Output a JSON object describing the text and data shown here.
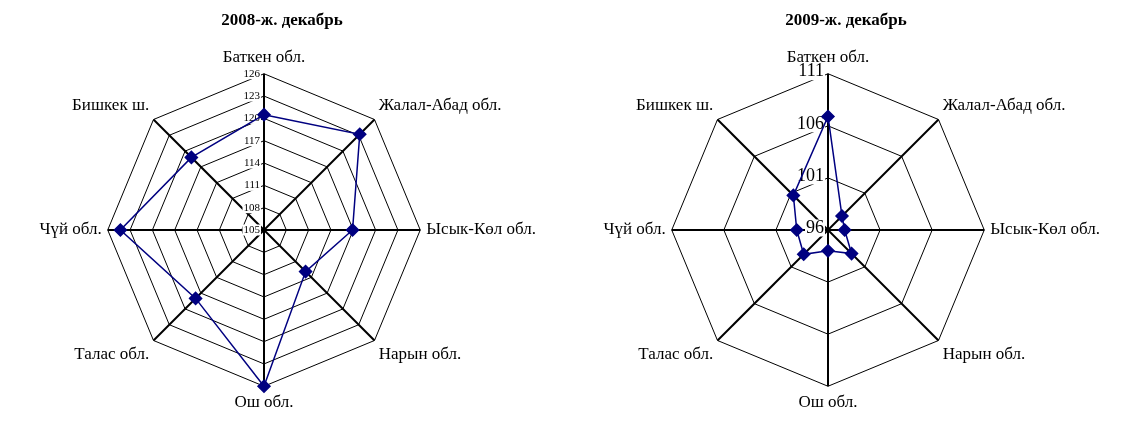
{
  "chart_data": [
    {
      "type": "radar",
      "title": "2008-ж. декабрь",
      "categories": [
        "Баткен обл.",
        "Жалал-Абад обл.",
        "Ысык-Көл обл.",
        "Нарын обл.",
        "Ош обл.",
        "Талас обл.",
        "Чүй обл.",
        "Бишкек ш."
      ],
      "series": [
        {
          "color": "#000080",
          "values": [
            120.5,
            123.2,
            116.9,
            112.9,
            126,
            118,
            124.3,
            118.8
          ]
        }
      ],
      "ylim": [
        105,
        126
      ],
      "yticks": [
        105,
        108,
        111,
        114,
        117,
        120,
        123,
        126
      ],
      "grid": true,
      "marker": "diamond"
    },
    {
      "type": "radar",
      "title": "2009-ж. декабрь",
      "categories": [
        "Баткен обл.",
        "Жалал-Абад обл.",
        "Ысык-Көл обл.",
        "Нарын обл.",
        "Ош обл.",
        "Талас обл.",
        "Чүй обл.",
        "Бишкек ш."
      ],
      "series": [
        {
          "color": "#000080",
          "values": [
            106.9,
            97.9,
            97.6,
            99.2,
            98,
            99.3,
            99,
            100.7
          ]
        }
      ],
      "ylim": [
        96,
        111
      ],
      "yticks": [
        96,
        101,
        106,
        111
      ],
      "grid": true,
      "marker": "diamond"
    }
  ]
}
